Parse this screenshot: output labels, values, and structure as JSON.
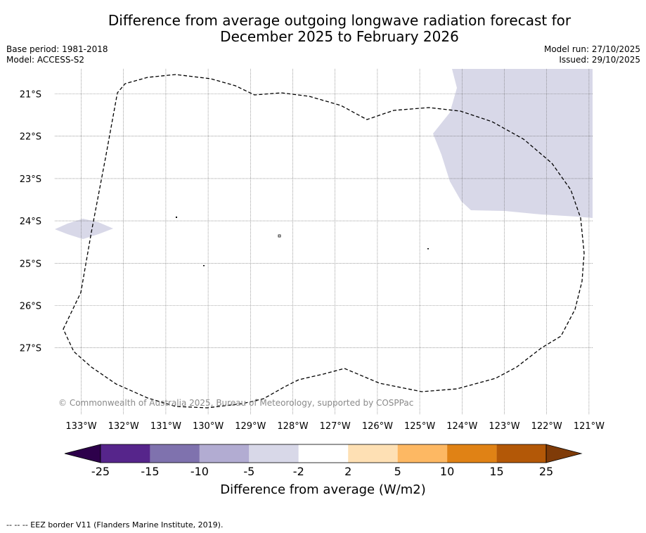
{
  "title_line1": "Difference from average outgoing longwave radiation forecast for",
  "title_line2": "December 2025 to February 2026",
  "meta_left": [
    "Base period: 1981-2018",
    "Model: ACCESS-S2"
  ],
  "meta_right": [
    "Model run: 27/10/2025",
    "Issued: 29/10/2025"
  ],
  "map": {
    "lat_labels": [
      "21°S",
      "22°S",
      "23°S",
      "24°S",
      "25°S",
      "26°S",
      "27°S"
    ],
    "lon_labels": [
      "133°W",
      "132°W",
      "131°W",
      "130°W",
      "129°W",
      "128°W",
      "127°W",
      "126°W",
      "125°W",
      "124°W",
      "123°W",
      "122°W",
      "121°W"
    ],
    "copyright": "© Commonwealth of Australia 2025, Bureau of Meteorology, supported by COSPPac",
    "anomaly_color": "#d8d8e8",
    "border_color": "#000000"
  },
  "colorbar": {
    "ticks": [
      "-25",
      "-15",
      "-10",
      "-5",
      "-2",
      "2",
      "5",
      "10",
      "15",
      "25"
    ],
    "colors": [
      "#56258b",
      "#7f72ae",
      "#b2acd2",
      "#d8d8e8",
      "#ffffff",
      "#fee0b4",
      "#fdb863",
      "#e08215",
      "#b35807"
    ],
    "under_color": "#2d004b",
    "over_color": "#7f3b08",
    "label": "Difference from average (W/m2)"
  },
  "footer": "--  --  -- EEZ border V11 (Flanders Marine Institute, 2019)."
}
